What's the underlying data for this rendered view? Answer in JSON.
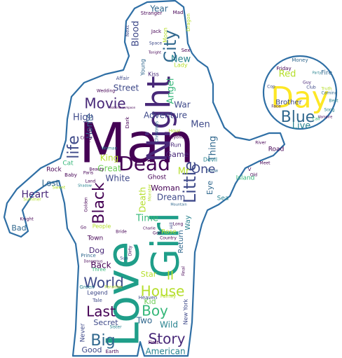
{
  "outline_color": "#2f6fa5",
  "palette": [
    "#440154",
    "#482878",
    "#3e4989",
    "#31688e",
    "#26828e",
    "#1f9e89",
    "#35b779",
    "#6ece58",
    "#b5de2b",
    "#fde725"
  ],
  "words": [
    {
      "text": "Man",
      "color": "#440154"
    },
    {
      "text": "Love",
      "color": "#1f9e89"
    },
    {
      "text": "Girl",
      "color": "#1f9e89"
    },
    {
      "text": "Night",
      "color": "#482878"
    },
    {
      "text": "Day",
      "color": "#fde725"
    },
    {
      "text": "Dead",
      "color": "#440154"
    },
    {
      "text": "Movie",
      "color": "#482878"
    },
    {
      "text": "City",
      "color": "#31688e"
    },
    {
      "text": "Little",
      "color": "#3e4989"
    },
    {
      "text": "Black",
      "color": "#440154"
    },
    {
      "text": "life",
      "color": "#3e4989"
    },
    {
      "text": "Blue",
      "color": "#31688e"
    },
    {
      "text": "Story",
      "color": "#482878"
    },
    {
      "text": "House",
      "color": "#b5de2b"
    },
    {
      "text": "World",
      "color": "#3e4989"
    },
    {
      "text": "Last",
      "color": "#440154"
    },
    {
      "text": "Big",
      "color": "#31688e"
    },
    {
      "text": "Boy",
      "color": "#35b779"
    },
    {
      "text": "One",
      "color": "#3e4989"
    },
    {
      "text": "Adventure",
      "color": "#3e4989"
    },
    {
      "text": "Heart",
      "color": "#482878"
    },
    {
      "text": "Men",
      "color": "#3e4989"
    },
    {
      "text": "Red",
      "color": "#b5de2b"
    },
    {
      "text": "Live",
      "color": "#26828e"
    },
    {
      "text": "Street",
      "color": "#3e4989"
    },
    {
      "text": "Thing",
      "color": "#31688e"
    },
    {
      "text": "Home",
      "color": "#31688e"
    },
    {
      "text": "High",
      "color": "#3e4989"
    },
    {
      "text": "Angel",
      "color": "#35b779"
    },
    {
      "text": "Blood",
      "color": "#3e4989"
    },
    {
      "text": "Year",
      "color": "#31688e"
    },
    {
      "text": "New",
      "color": "#26828e"
    },
    {
      "text": "War",
      "color": "#3e4989"
    },
    {
      "text": "King",
      "color": "#b5de2b"
    },
    {
      "text": "Great",
      "color": "#6ece58"
    },
    {
      "text": "White",
      "color": "#3e4989"
    },
    {
      "text": "Game",
      "color": "#482878"
    },
    {
      "text": "Mr",
      "color": "#b5de2b"
    },
    {
      "text": "Lost",
      "color": "#31688e"
    },
    {
      "text": "Time",
      "color": "#35b779"
    },
    {
      "text": "Woman",
      "color": "#440154"
    },
    {
      "text": "Dream",
      "color": "#3e4989"
    },
    {
      "text": "Eye",
      "color": "#31688e"
    },
    {
      "text": "Death",
      "color": "#b5de2b"
    },
    {
      "text": "Back",
      "color": "#440154"
    },
    {
      "text": "Dog",
      "color": "#482878"
    },
    {
      "text": "Star",
      "color": "#b5de2b"
    },
    {
      "text": "II",
      "color": "#b5de2b"
    },
    {
      "text": "Kid",
      "color": "#6ece58"
    },
    {
      "text": "Two",
      "color": "#31688e"
    },
    {
      "text": "Secret",
      "color": "#3e4989"
    },
    {
      "text": "Wild",
      "color": "#26828e"
    },
    {
      "text": "Good",
      "color": "#3e4989"
    },
    {
      "text": "American",
      "color": "#26828e"
    },
    {
      "text": "Brother",
      "color": "#3e4989"
    },
    {
      "text": "Bad",
      "color": "#31688e"
    },
    {
      "text": "Town",
      "color": "#440154"
    },
    {
      "text": "Way",
      "color": "#26828e"
    },
    {
      "text": "Return",
      "color": "#31688e"
    },
    {
      "text": "Rose",
      "color": "#b5de2b"
    },
    {
      "text": "Sea",
      "color": "#26828e"
    },
    {
      "text": "Island",
      "color": "#35b779"
    },
    {
      "text": "Cat",
      "color": "#35b779"
    },
    {
      "text": "Fire",
      "color": "#31688e"
    },
    {
      "text": "Road",
      "color": "#440154"
    },
    {
      "text": "Never",
      "color": "#3e4989"
    },
    {
      "text": "Legend",
      "color": "#3e4989"
    },
    {
      "text": "People",
      "color": "#b5de2b"
    },
    {
      "text": "Ghost",
      "color": "#440154"
    },
    {
      "text": "Devil",
      "color": "#26828e"
    },
    {
      "text": "Run",
      "color": "#482878"
    },
    {
      "text": "Kiss",
      "color": "#482878"
    },
    {
      "text": "Young",
      "color": "#31688e"
    },
    {
      "text": "Lady",
      "color": "#b5de2b"
    },
    {
      "text": "Sex",
      "color": "#440154"
    },
    {
      "text": "Moon",
      "color": "#b5de2b"
    },
    {
      "text": "Dragon",
      "color": "#b5de2b"
    },
    {
      "text": "Jack",
      "color": "#440154"
    },
    {
      "text": "Stranger",
      "color": "#440154"
    },
    {
      "text": "Mad",
      "color": "#440154"
    },
    {
      "text": "Next",
      "color": "#3e4989"
    },
    {
      "text": "Affair",
      "color": "#3e4989"
    },
    {
      "text": "Wedding",
      "color": "#440154"
    },
    {
      "text": "Hour",
      "color": "#b5de2b"
    },
    {
      "text": "Family",
      "color": "#b5de2b"
    },
    {
      "text": "Green",
      "color": "#26828e"
    },
    {
      "text": "Paradise",
      "color": "#b5de2b"
    },
    {
      "text": "Tale",
      "color": "#3e4989"
    },
    {
      "text": "Sister",
      "color": "#26828e"
    },
    {
      "text": "First",
      "color": "#440154"
    },
    {
      "text": "Heaven",
      "color": "#3e4989"
    },
    {
      "text": "New York",
      "color": "#3e4989"
    },
    {
      "text": "Earth",
      "color": "#440154"
    },
    {
      "text": "Prince",
      "color": "#31688e"
    },
    {
      "text": "Three",
      "color": "#35b779"
    },
    {
      "text": "Sun",
      "color": "#3e4989"
    },
    {
      "text": "God",
      "color": "#440154"
    },
    {
      "text": "Country",
      "color": "#440154"
    },
    {
      "text": "Bride",
      "color": "#440154"
    },
    {
      "text": "Hill",
      "color": "#3e4989"
    },
    {
      "text": "Long",
      "color": "#440154"
    },
    {
      "text": "Club",
      "color": "#3e4989"
    },
    {
      "text": "Money",
      "color": "#31688e"
    },
    {
      "text": "Friday",
      "color": "#440154"
    },
    {
      "text": "Guy",
      "color": "#482878"
    },
    {
      "text": "Face",
      "color": "#482878"
    },
    {
      "text": "Best",
      "color": "#26828e"
    },
    {
      "text": "Song",
      "color": "#26828e"
    },
    {
      "text": "Rock",
      "color": "#440154"
    },
    {
      "text": "Baby",
      "color": "#440154"
    },
    {
      "text": "Paris",
      "color": "#440154"
    },
    {
      "text": "Land",
      "color": "#440154"
    },
    {
      "text": "Sweet",
      "color": "#b5de2b"
    },
    {
      "text": "Summer",
      "color": "#b5de2b"
    },
    {
      "text": "Crazy",
      "color": "#440154"
    },
    {
      "text": "Christmas",
      "color": "#31688e"
    },
    {
      "text": "Dark",
      "color": "#440154"
    },
    {
      "text": "Snow",
      "color": "#31688e"
    },
    {
      "text": "River",
      "color": "#440154"
    },
    {
      "text": "Meet",
      "color": "#440154"
    },
    {
      "text": "Golden",
      "color": "#440154"
    },
    {
      "text": "Dirty",
      "color": "#440154"
    },
    {
      "text": "Final",
      "color": "#440154"
    },
    {
      "text": "Space",
      "color": "#3e4989"
    },
    {
      "text": "Beauty",
      "color": "#440154"
    },
    {
      "text": "Old",
      "color": "#440154"
    },
    {
      "text": "Cop",
      "color": "#3e4989"
    },
    {
      "text": "Perfect",
      "color": "#440154"
    },
    {
      "text": "Knight",
      "color": "#440154"
    },
    {
      "text": "Woman",
      "color": "#26828e"
    },
    {
      "text": "Beyond",
      "color": "#440154"
    },
    {
      "text": "Go",
      "color": "#440154"
    },
    {
      "text": "Dangerous",
      "color": "#440154"
    },
    {
      "text": "Charlie",
      "color": "#440154"
    },
    {
      "text": "Truth",
      "color": "#b5de2b"
    },
    {
      "text": "V",
      "color": "#440154"
    },
    {
      "text": "Call",
      "color": "#35b779"
    },
    {
      "text": "Coming",
      "color": "#31688e"
    },
    {
      "text": "Monster",
      "color": "#b5de2b"
    },
    {
      "text": "Vampire",
      "color": "#440154"
    },
    {
      "text": "Party",
      "color": "#26828e"
    },
    {
      "text": "Mountain",
      "color": "#31688e"
    },
    {
      "text": "Tonight",
      "color": "#440154"
    },
    {
      "text": "Shadow",
      "color": "#26828e"
    },
    {
      "text": "National Lampoon",
      "color": "#440154"
    }
  ]
}
